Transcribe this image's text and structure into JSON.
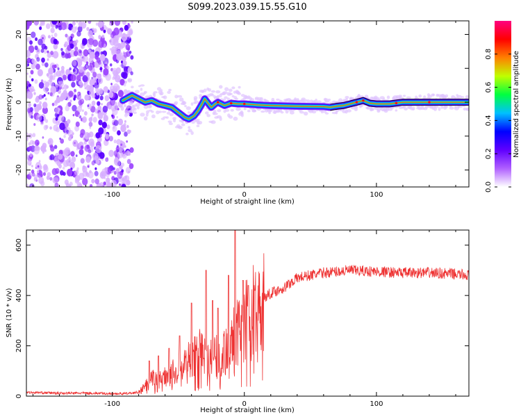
{
  "figure_title": "S099.2023.039.15.55.G10",
  "chart_data": [
    {
      "type": "heatmap",
      "xlabel": "Height of straight line (km)",
      "ylabel": "Frequency (Hz)",
      "xlim": [
        -165,
        170
      ],
      "ylim": [
        -25,
        24
      ],
      "x_ticks": [
        -100,
        0,
        100
      ],
      "x_tick_labels": [
        "-100",
        "0",
        "100"
      ],
      "y_ticks": [
        -20,
        -10,
        0,
        10,
        20
      ],
      "y_tick_labels": [
        "-20",
        "-10",
        "0",
        "10",
        "20"
      ],
      "grid": false,
      "ridge": {
        "x": [
          -92,
          -85,
          -80,
          -75,
          -70,
          -65,
          -60,
          -55,
          -50,
          -45,
          -42,
          -38,
          -35,
          -32,
          -30,
          -28,
          -25,
          -22,
          -20,
          -15,
          -10,
          -5,
          0,
          10,
          20,
          40,
          60,
          65,
          70,
          75,
          80,
          85,
          90,
          95,
          100,
          110,
          120,
          130,
          140,
          150,
          160,
          170
        ],
        "y": [
          0.5,
          2.0,
          1.0,
          0.0,
          0.5,
          -0.5,
          -1.0,
          -1.5,
          -3.0,
          -4.5,
          -5.0,
          -4.0,
          -2.5,
          -0.5,
          1.0,
          0.0,
          -1.5,
          -0.5,
          0.0,
          -1.0,
          -0.3,
          -0.5,
          -0.5,
          -0.8,
          -1.0,
          -1.2,
          -1.3,
          -1.5,
          -1.2,
          -1.0,
          -0.5,
          0.0,
          0.5,
          -0.3,
          -0.5,
          -0.5,
          0.0,
          0.0,
          0.0,
          0.0,
          0.0,
          0.0
        ]
      },
      "noise_region_x": [
        -165,
        -88
      ],
      "colorbar": {
        "label": "Normalized spectral amplitude",
        "range": [
          0.0,
          1.0
        ],
        "ticks": [
          0.0,
          0.2,
          0.4,
          0.6,
          0.8
        ],
        "tick_labels": [
          "0.0",
          "0.2",
          "0.4",
          "0.6",
          "0.8"
        ],
        "colors": [
          "#ffffff",
          "#b060ff",
          "#6000ff",
          "#0000ff",
          "#00c0ff",
          "#00ff40",
          "#c0ff00",
          "#ff8000",
          "#ff0000",
          "#ff0080"
        ]
      }
    },
    {
      "type": "line",
      "xlabel": "Height of straight line (km)",
      "ylabel": "SNR (10 * v/v)",
      "xlim": [
        -165,
        170
      ],
      "ylim": [
        0,
        660
      ],
      "x_ticks": [
        -100,
        0,
        100
      ],
      "x_tick_labels": [
        "-100",
        "0",
        "100"
      ],
      "y_ticks": [
        0,
        200,
        400,
        600
      ],
      "y_tick_labels": [
        "0",
        "200",
        "400",
        "600"
      ],
      "grid": false,
      "color": "#ee3333",
      "envelope": {
        "x": [
          -165,
          -140,
          -120,
          -100,
          -90,
          -80,
          -75,
          -70,
          -65,
          -60,
          -55,
          -50,
          -45,
          -40,
          -35,
          -30,
          -25,
          -20,
          -15,
          -10,
          -5,
          0,
          5,
          10,
          15,
          20,
          30,
          40,
          60,
          80,
          100,
          120,
          140,
          160,
          170
        ],
        "y": [
          15,
          12,
          12,
          10,
          10,
          15,
          40,
          70,
          60,
          80,
          90,
          110,
          130,
          160,
          170,
          180,
          150,
          160,
          190,
          230,
          250,
          290,
          330,
          360,
          390,
          410,
          430,
          470,
          490,
          500,
          495,
          490,
          490,
          485,
          480
        ]
      },
      "spikes": {
        "x": [
          -72,
          -65,
          -57,
          -49,
          -40,
          -29,
          -24,
          -20,
          -12,
          -7,
          -1,
          3,
          8
        ],
        "y": [
          140,
          160,
          190,
          240,
          370,
          500,
          380,
          350,
          480,
          660,
          460,
          440,
          420
        ]
      }
    }
  ]
}
